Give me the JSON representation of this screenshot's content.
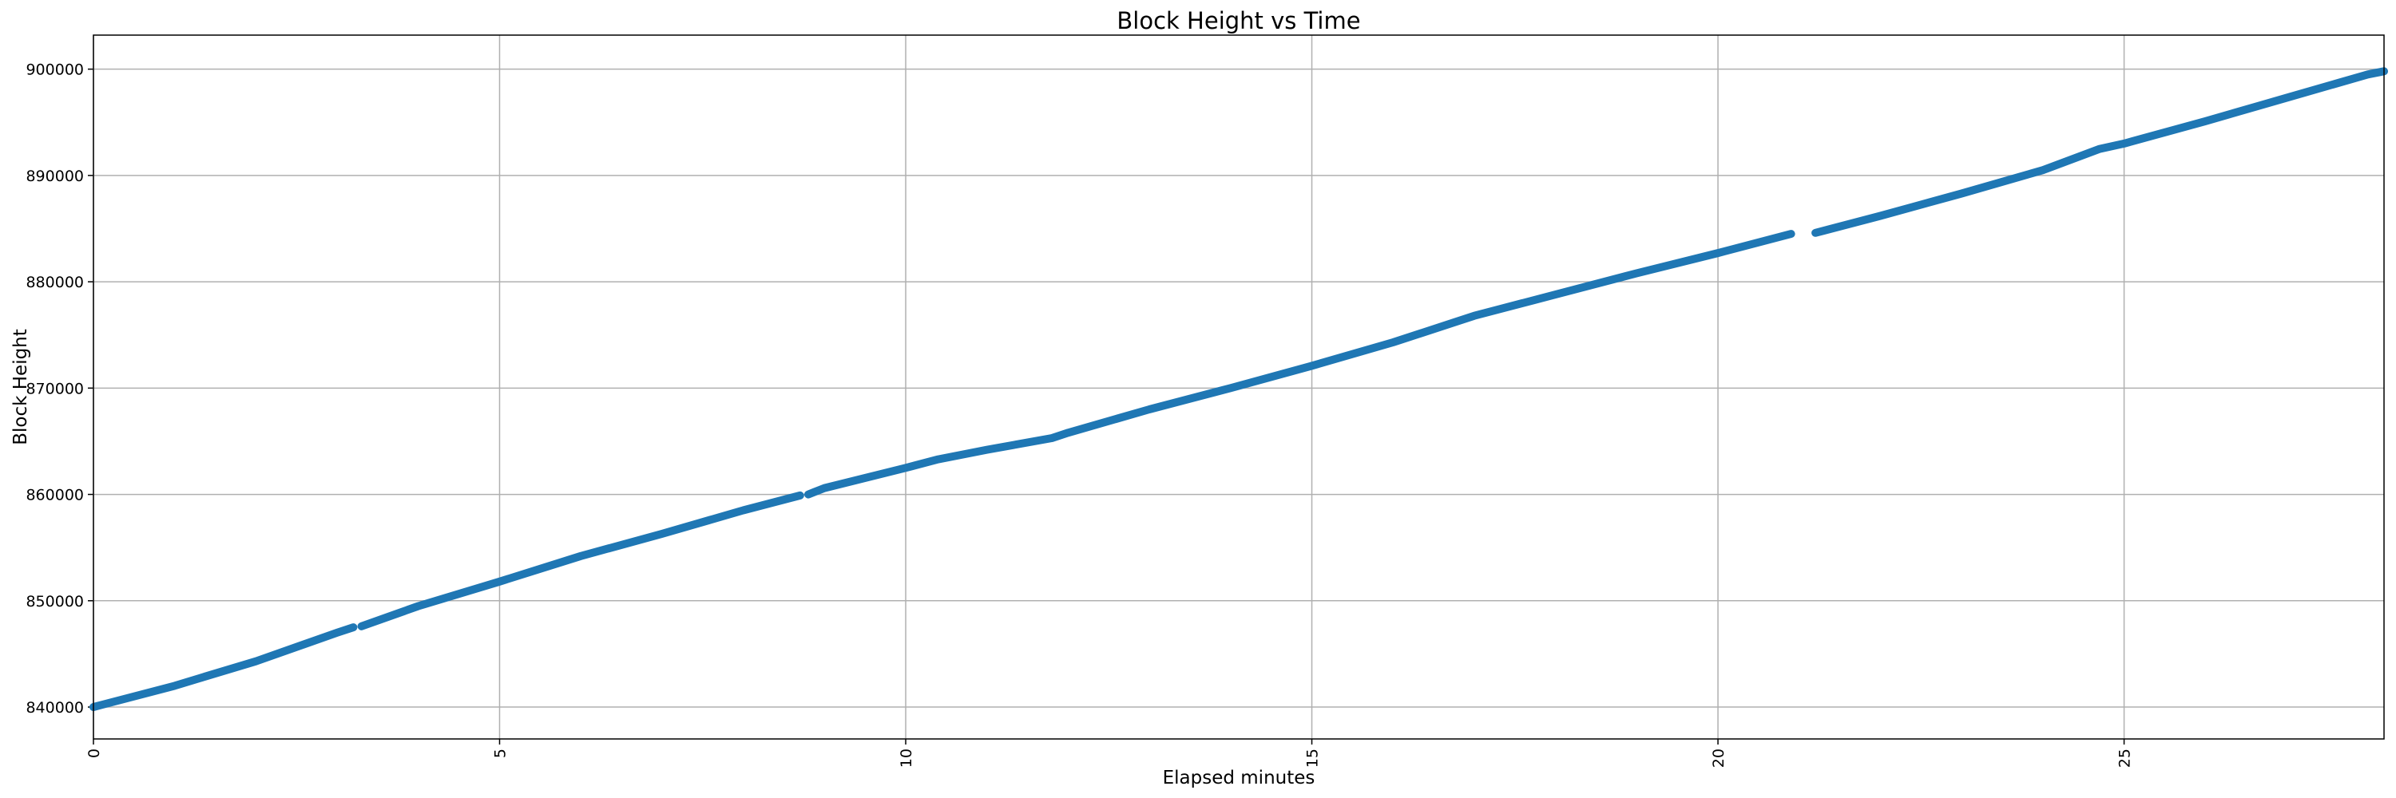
{
  "chart_data": {
    "type": "line",
    "title": "Block Height vs Time",
    "xlabel": "Elapsed minutes",
    "ylabel": "Block Height",
    "x": [
      0,
      1,
      1.3,
      2,
      3,
      3.2,
      3.25,
      3.3,
      4,
      5,
      6,
      7,
      8,
      8.7,
      8.75,
      8.8,
      9,
      10,
      10.4,
      11,
      11.8,
      12,
      13,
      14,
      15,
      16,
      16.8,
      17,
      18,
      19,
      20,
      20.9,
      21.05,
      21.2,
      22,
      23,
      24,
      24.7,
      25,
      26,
      27,
      28,
      28.2
    ],
    "values": [
      840000,
      842000,
      842700,
      844300,
      847000,
      847500,
      null,
      847600,
      849500,
      851800,
      854200,
      856300,
      858500,
      859900,
      null,
      860000,
      860600,
      862500,
      863300,
      864200,
      865300,
      865800,
      868000,
      870000,
      872100,
      874300,
      876300,
      876800,
      878800,
      880800,
      882700,
      884500,
      null,
      884600,
      886200,
      888300,
      890500,
      892500,
      893000,
      895100,
      897300,
      899500,
      899800
    ],
    "color": "#1f77b4",
    "xlim": [
      0,
      28.2
    ],
    "ylim": [
      837000,
      903200
    ],
    "xticks": [
      0,
      5,
      10,
      15,
      20,
      25
    ],
    "yticks": [
      840000,
      850000,
      860000,
      870000,
      880000,
      890000,
      900000
    ],
    "grid": true
  }
}
